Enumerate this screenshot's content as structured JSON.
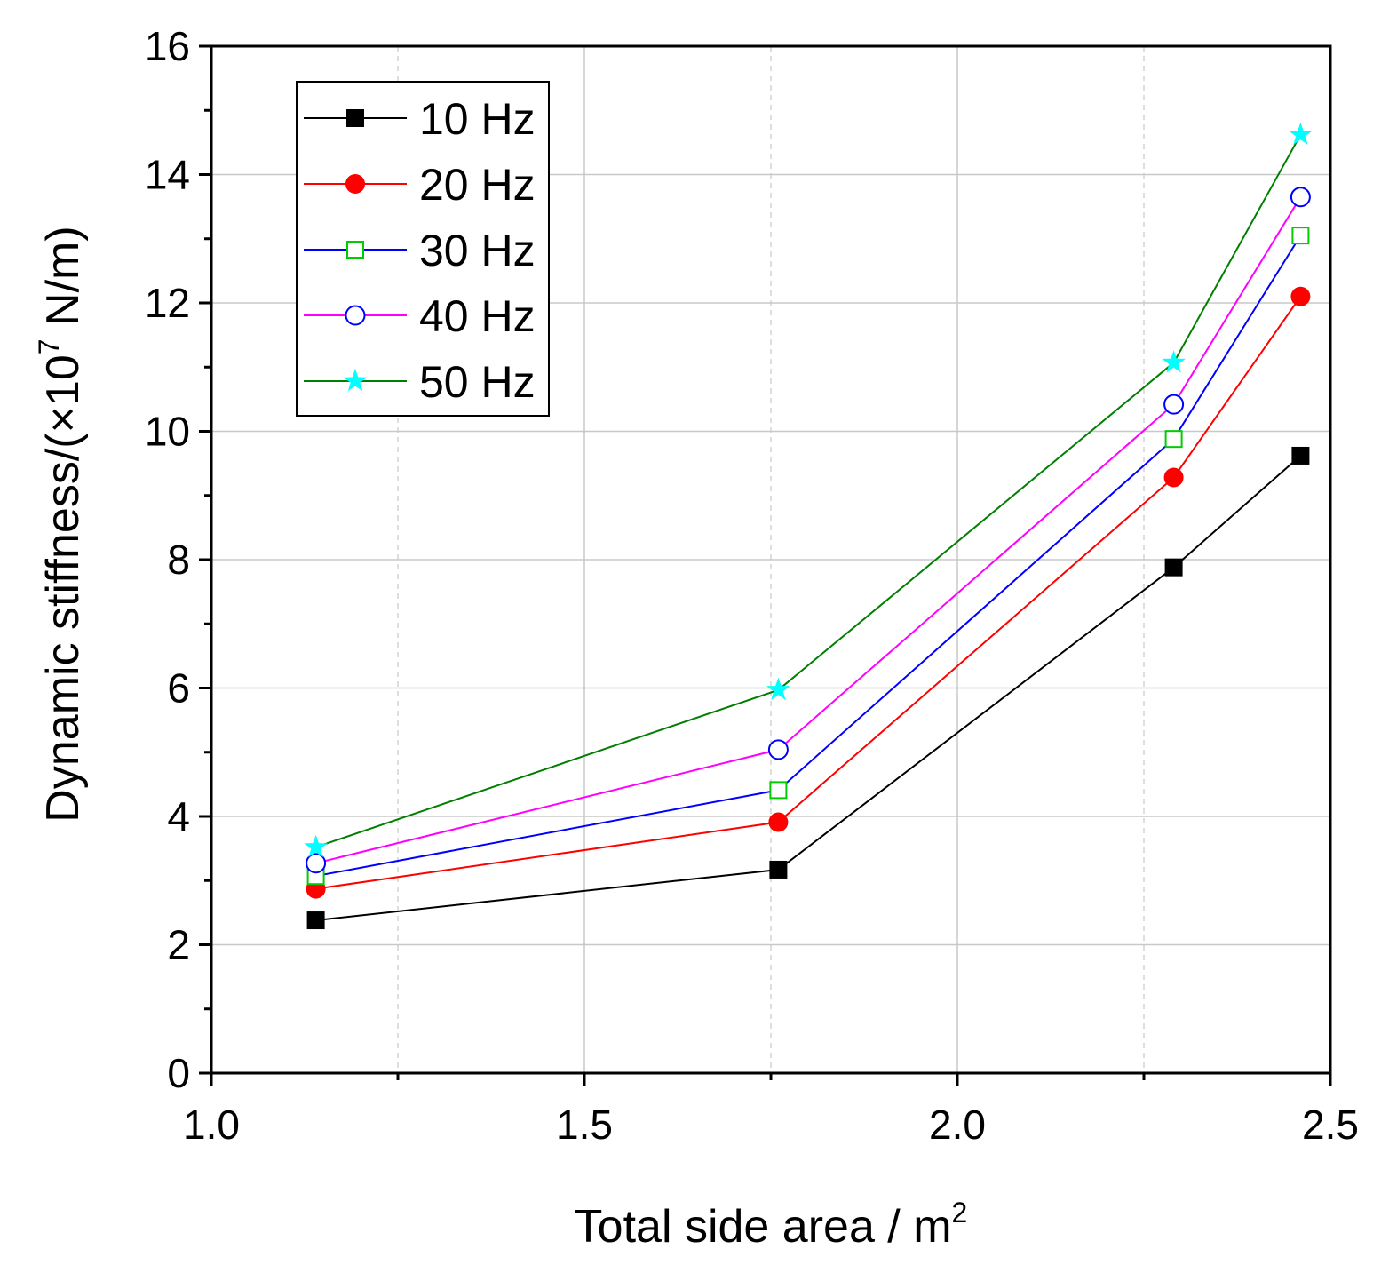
{
  "chart_data": {
    "type": "line",
    "xlabel": {
      "main": "Total side area / m",
      "sup": "2"
    },
    "ylabel": {
      "main": "Dynamic stiffness/(×10",
      "sup": "7",
      "tail": " N/m)"
    },
    "xlim": [
      1.0,
      2.5
    ],
    "ylim": [
      0,
      16
    ],
    "xticks": [
      1.0,
      1.5,
      2.0,
      2.5
    ],
    "xtick_labels": [
      "1.0",
      "1.5",
      "2.0",
      "2.5"
    ],
    "yticks": [
      0,
      2,
      4,
      6,
      8,
      10,
      12,
      14,
      16
    ],
    "ytick_labels": [
      "0",
      "2",
      "4",
      "6",
      "8",
      "10",
      "12",
      "14",
      "16"
    ],
    "grid": true,
    "legend_position": "top-left",
    "x": [
      1.14,
      1.76,
      2.29,
      2.46
    ],
    "series": [
      {
        "name": "10 Hz",
        "values": [
          2.38,
          3.17,
          7.88,
          9.62
        ],
        "color": "#000000",
        "marker_color": "#000000",
        "marker": "square-filled"
      },
      {
        "name": "20 Hz",
        "values": [
          2.87,
          3.91,
          9.28,
          12.1
        ],
        "color": "#ff0000",
        "marker_color": "#ff0000",
        "marker": "circle-filled"
      },
      {
        "name": "30 Hz",
        "values": [
          3.07,
          4.41,
          9.88,
          13.05
        ],
        "color": "#0000ff",
        "marker_color": "#00cc00",
        "marker": "square-open"
      },
      {
        "name": "40 Hz",
        "values": [
          3.27,
          5.04,
          10.42,
          13.65
        ],
        "color": "#ff00ff",
        "marker_color": "#0000ff",
        "marker": "circle-open"
      },
      {
        "name": "50 Hz",
        "values": [
          3.52,
          5.97,
          11.07,
          14.62
        ],
        "color": "#007f00",
        "marker_color": "#00ffff",
        "marker": "star"
      }
    ]
  }
}
